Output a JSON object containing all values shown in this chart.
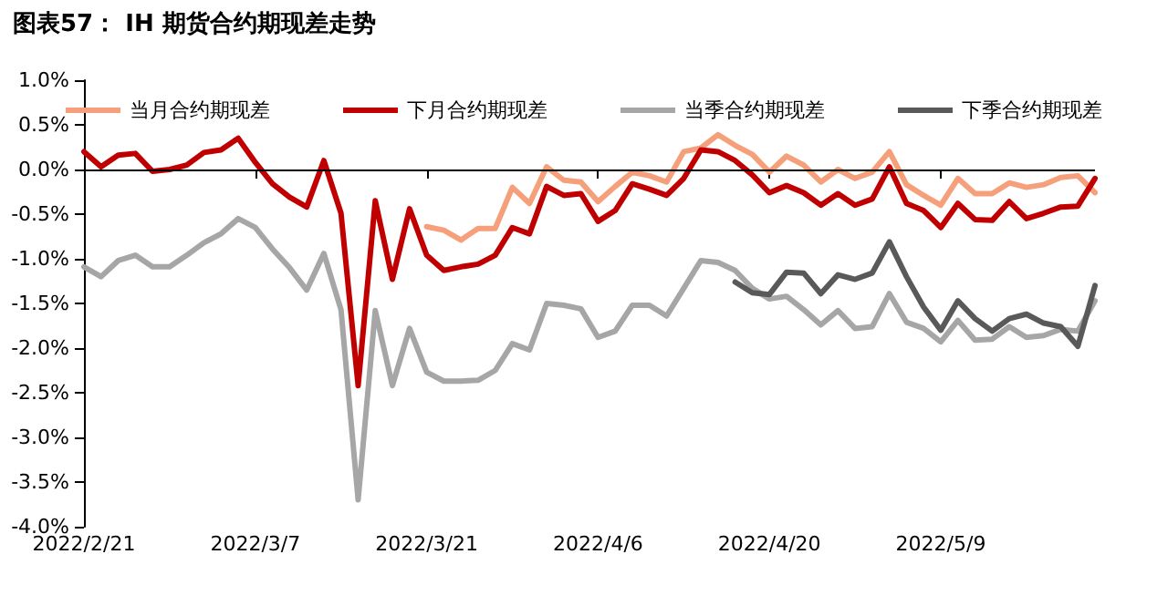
{
  "chart_data": {
    "type": "line",
    "title": "图表57： IH 期货合约期现差走势",
    "categories": [
      "2022/2/21",
      null,
      null,
      null,
      null,
      null,
      null,
      null,
      null,
      null,
      "2022/3/7",
      null,
      null,
      null,
      null,
      null,
      null,
      null,
      null,
      null,
      "2022/3/21",
      null,
      null,
      null,
      null,
      null,
      null,
      null,
      null,
      null,
      "2022/4/6",
      null,
      null,
      null,
      null,
      null,
      null,
      null,
      null,
      null,
      "2022/4/20",
      null,
      null,
      null,
      null,
      null,
      null,
      null,
      null,
      null,
      "2022/5/9",
      null,
      null,
      null,
      null,
      null,
      null,
      null,
      null,
      null
    ],
    "series": [
      {
        "name": "当月合约期现差",
        "color": "#f5a07a",
        "values": [
          null,
          null,
          null,
          null,
          null,
          null,
          null,
          null,
          null,
          null,
          null,
          null,
          null,
          null,
          null,
          null,
          null,
          null,
          null,
          null,
          -0.64,
          -0.68,
          -0.79,
          -0.66,
          -0.66,
          -0.2,
          -0.38,
          0.03,
          -0.12,
          -0.14,
          -0.36,
          -0.19,
          -0.03,
          -0.07,
          -0.14,
          0.2,
          0.24,
          0.39,
          0.27,
          0.17,
          -0.03,
          0.15,
          0.05,
          -0.14,
          0,
          -0.1,
          -0.03,
          0.2,
          -0.17,
          -0.29,
          -0.4,
          -0.1,
          -0.27,
          -0.27,
          -0.15,
          -0.2,
          -0.17,
          -0.09,
          -0.07,
          -0.26
        ]
      },
      {
        "name": "下月合约期现差",
        "color": "#c00000",
        "values": [
          0.2,
          0.03,
          0.16,
          0.18,
          -0.02,
          0,
          0.05,
          0.19,
          0.22,
          0.35,
          0.08,
          -0.16,
          -0.31,
          -0.42,
          0.1,
          -0.49,
          -2.42,
          -0.35,
          -1.23,
          -0.44,
          -0.96,
          -1.13,
          -1.09,
          -1.06,
          -0.96,
          -0.65,
          -0.72,
          -0.19,
          -0.29,
          -0.27,
          -0.58,
          -0.46,
          -0.16,
          -0.22,
          -0.29,
          -0.1,
          0.22,
          0.2,
          0.1,
          -0.06,
          -0.26,
          -0.18,
          -0.26,
          -0.4,
          -0.27,
          -0.4,
          -0.33,
          0.03,
          -0.38,
          -0.46,
          -0.65,
          -0.38,
          -0.56,
          -0.57,
          -0.36,
          -0.55,
          -0.49,
          -0.42,
          -0.41,
          -0.1
        ]
      },
      {
        "name": "当季合约期现差",
        "color": "#a6a6a6",
        "values": [
          -1.09,
          -1.2,
          -1.02,
          -0.96,
          -1.09,
          -1.09,
          -0.96,
          -0.82,
          -0.72,
          -0.55,
          -0.65,
          -0.89,
          -1.1,
          -1.35,
          -0.94,
          -1.57,
          -3.7,
          -1.58,
          -2.42,
          -1.78,
          -2.27,
          -2.37,
          -2.37,
          -2.36,
          -2.25,
          -1.95,
          -2.02,
          -1.5,
          -1.52,
          -1.56,
          -1.88,
          -1.81,
          -1.52,
          -1.52,
          -1.64,
          -1.33,
          -1.02,
          -1.04,
          -1.13,
          -1.33,
          -1.45,
          -1.42,
          -1.57,
          -1.74,
          -1.58,
          -1.78,
          -1.76,
          -1.39,
          -1.71,
          -1.78,
          -1.93,
          -1.69,
          -1.91,
          -1.9,
          -1.76,
          -1.88,
          -1.86,
          -1.79,
          -1.81,
          -1.47
        ]
      },
      {
        "name": "下季合约期现差",
        "color": "#595959",
        "values": [
          null,
          null,
          null,
          null,
          null,
          null,
          null,
          null,
          null,
          null,
          null,
          null,
          null,
          null,
          null,
          null,
          null,
          null,
          null,
          null,
          null,
          null,
          null,
          null,
          null,
          null,
          null,
          null,
          null,
          null,
          null,
          null,
          null,
          null,
          null,
          null,
          null,
          null,
          -1.26,
          -1.38,
          -1.4,
          -1.15,
          -1.16,
          -1.39,
          -1.18,
          -1.23,
          -1.16,
          -0.81,
          -1.2,
          -1.54,
          -1.8,
          -1.47,
          -1.67,
          -1.81,
          -1.67,
          -1.62,
          -1.72,
          -1.76,
          -1.98,
          -1.3
        ]
      }
    ],
    "ylim": [
      -4,
      1
    ],
    "yticks": [
      {
        "value": -4,
        "label": "-4.0%"
      },
      {
        "value": -3.5,
        "label": "-3.5%"
      },
      {
        "value": -3,
        "label": "-3.0%"
      },
      {
        "value": -2.5,
        "label": "-2.5%"
      },
      {
        "value": -2,
        "label": "-2.0%"
      },
      {
        "value": -1.5,
        "label": "-1.5%"
      },
      {
        "value": -1,
        "label": "-1.0%"
      },
      {
        "value": -0.5,
        "label": "-0.5%"
      },
      {
        "value": 0,
        "label": "0.0%"
      },
      {
        "value": 0.5,
        "label": "0.5%"
      },
      {
        "value": 1,
        "label": "1.0%"
      }
    ],
    "ref_lines": [
      {
        "axis": "y",
        "value": 0,
        "color": "#000000",
        "line_style": "solid"
      }
    ],
    "grid": false,
    "legend": "top",
    "marker": "none",
    "line_style": "solid"
  }
}
